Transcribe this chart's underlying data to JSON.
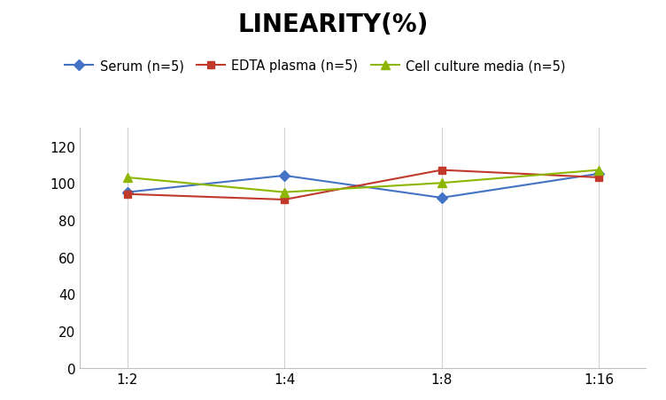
{
  "title": "LINEARITY(%)",
  "x_labels": [
    "1:2",
    "1:4",
    "1:8",
    "1:16"
  ],
  "x_positions": [
    0,
    1,
    2,
    3
  ],
  "series": [
    {
      "label": "Serum (n=5)",
      "values": [
        95,
        104,
        92,
        105
      ],
      "color": "#4472C4",
      "marker": "D",
      "marker_size": 6,
      "linewidth": 1.5
    },
    {
      "label": "EDTA plasma (n=5)",
      "values": [
        94,
        91,
        107,
        103
      ],
      "color": "#C0392B",
      "marker": "s",
      "marker_size": 6,
      "linewidth": 1.5
    },
    {
      "label": "Cell culture media (n=5)",
      "values": [
        103,
        95,
        100,
        107
      ],
      "color": "#8DB600",
      "marker": "^",
      "marker_size": 7,
      "linewidth": 1.5
    }
  ],
  "ylim": [
    0,
    130
  ],
  "yticks": [
    0,
    20,
    40,
    60,
    80,
    100,
    120
  ],
  "grid_color": "#D0D0D0",
  "background_color": "#FFFFFF",
  "title_fontsize": 20,
  "title_fontweight": "bold",
  "legend_fontsize": 10.5,
  "tick_fontsize": 11
}
